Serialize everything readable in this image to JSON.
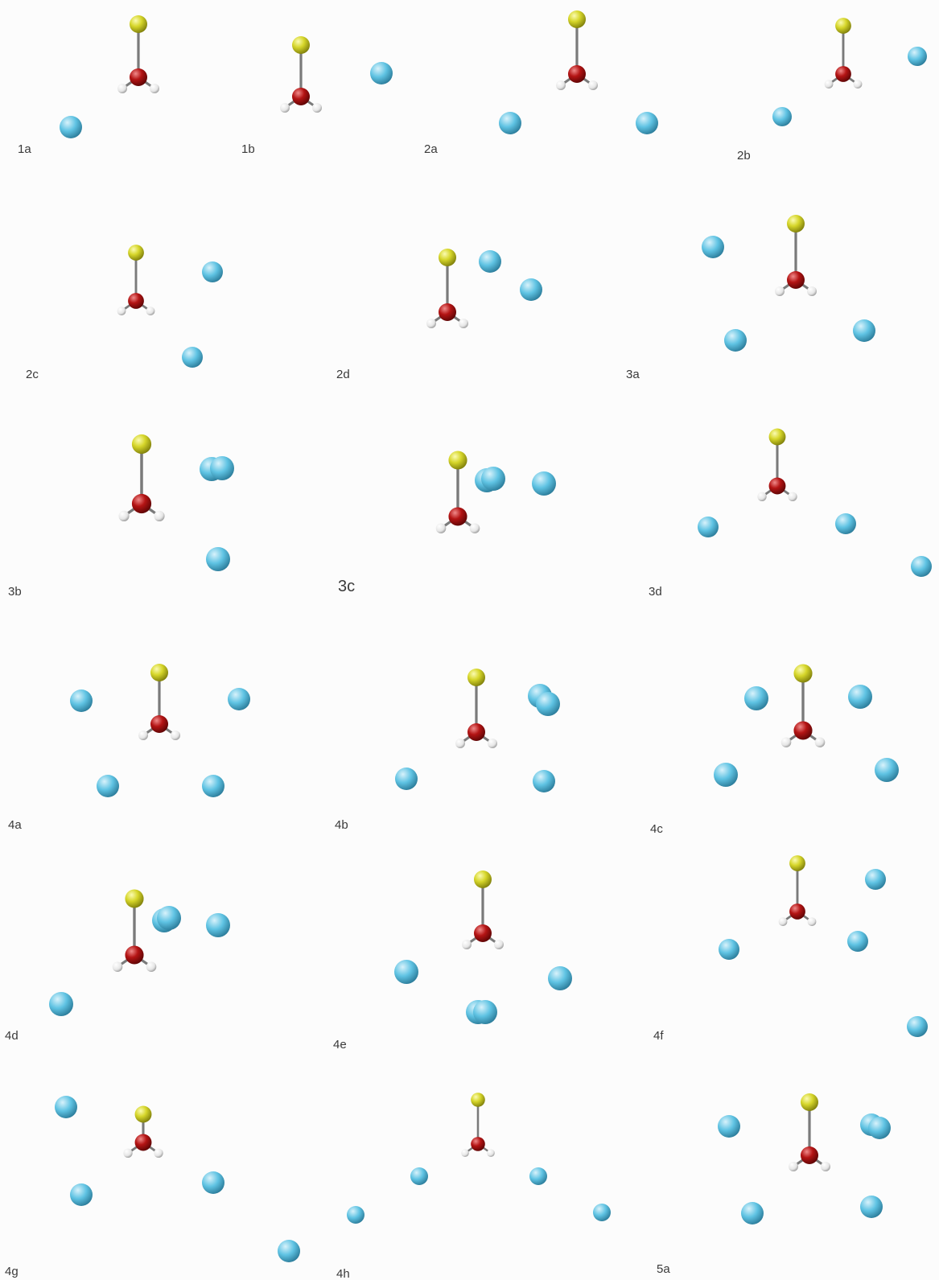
{
  "colors": {
    "sulfur": "#d6d62a",
    "oxygen": "#b41414",
    "hydrogen": "#f2f2f2",
    "sodium": "#5fc3e3",
    "bond": "#6e6e6e",
    "label_text": "#3a3a3a",
    "background": "#fcfcfc"
  },
  "panels": [
    {
      "label": "1a"
    },
    {
      "label": "1b"
    },
    {
      "label": "2a"
    },
    {
      "label": "2b"
    },
    {
      "label": "2c"
    },
    {
      "label": "2d"
    },
    {
      "label": "3a"
    },
    {
      "label": "3b"
    },
    {
      "label": "3c"
    },
    {
      "label": "3d"
    },
    {
      "label": "4a"
    },
    {
      "label": "4b"
    },
    {
      "label": "4c"
    },
    {
      "label": "4d"
    },
    {
      "label": "4e"
    },
    {
      "label": "4f"
    },
    {
      "label": "4g"
    },
    {
      "label": "4h"
    },
    {
      "label": "5a"
    }
  ]
}
